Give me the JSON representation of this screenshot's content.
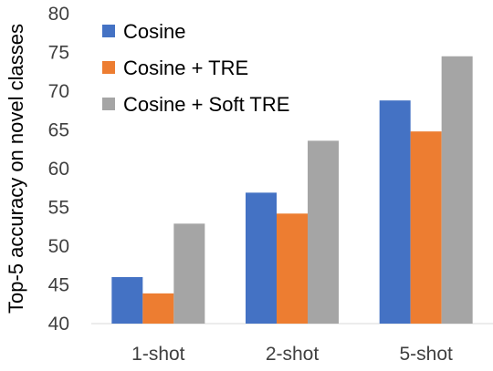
{
  "chart_data": {
    "type": "bar",
    "title": "",
    "xlabel": "",
    "ylabel": "Top-5 accuracy on novel classes",
    "ylim": [
      40,
      80
    ],
    "yticks": [
      40,
      45,
      50,
      55,
      60,
      65,
      70,
      75,
      80
    ],
    "grid": false,
    "legend_position": "top-left",
    "categories": [
      "1-shot",
      "2-shot",
      "5-shot"
    ],
    "series": [
      {
        "name": "Cosine",
        "color": "#4472C4",
        "values": [
          46.0,
          56.9,
          68.8
        ]
      },
      {
        "name": "Cosine + TRE",
        "color": "#ED7D31",
        "values": [
          43.9,
          54.2,
          64.8
        ]
      },
      {
        "name": "Cosine + Soft TRE",
        "color": "#A5A5A5",
        "values": [
          52.9,
          63.6,
          74.5
        ]
      }
    ]
  }
}
